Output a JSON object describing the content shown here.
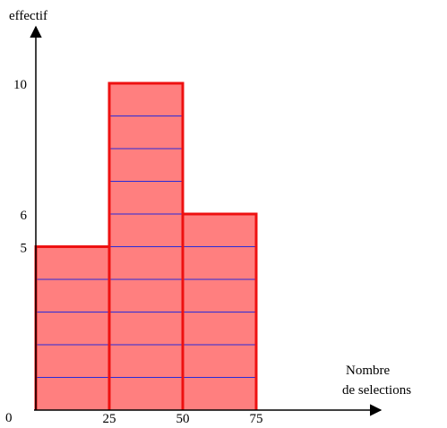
{
  "chart_data": {
    "type": "bar",
    "title": "",
    "ylabel": "effectif",
    "xlabel_line1": "Nombre",
    "xlabel_line2": "de selections",
    "origin_label": "0",
    "bins": [
      {
        "from": 0,
        "to": 25,
        "value": 5
      },
      {
        "from": 25,
        "to": 50,
        "value": 10
      },
      {
        "from": 50,
        "to": 75,
        "value": 6
      }
    ],
    "x_ticks": [
      25,
      50,
      75
    ],
    "y_ticks": [
      5,
      6,
      10
    ],
    "xlim": [
      0,
      120
    ],
    "ylim": [
      0,
      13
    ],
    "unit_grid": true,
    "grid": false,
    "legend": "none",
    "colors": {
      "bar_fill": "#ff7f7f",
      "bar_border": "#ee1111",
      "unit_lines": "#2a2ad8",
      "axes": "#000000"
    }
  }
}
